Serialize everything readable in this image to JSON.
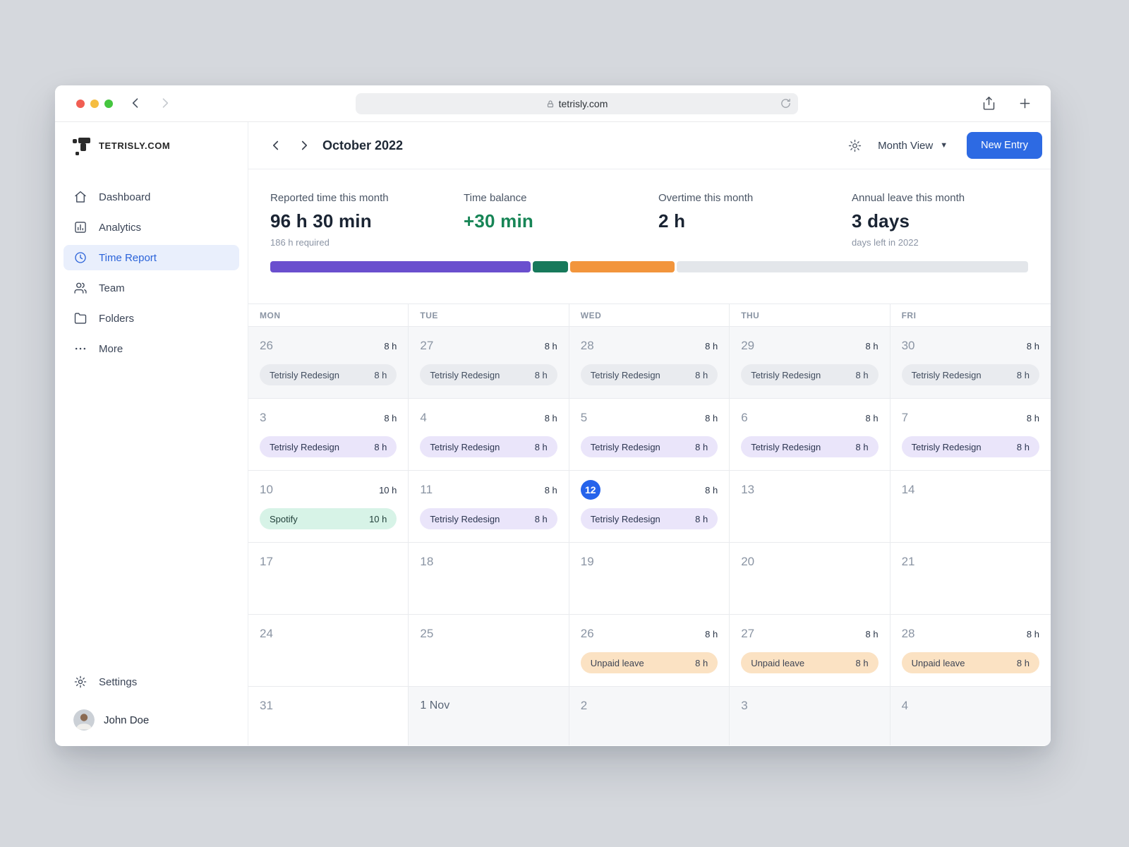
{
  "browser": {
    "url": "tetrisly.com"
  },
  "sidebar": {
    "logo_text": "TETRISLY.COM",
    "items": [
      {
        "label": "Dashboard",
        "icon": "home-icon",
        "active": false
      },
      {
        "label": "Analytics",
        "icon": "analytics-icon",
        "active": false
      },
      {
        "label": "Time Report",
        "icon": "clock-icon",
        "active": true
      },
      {
        "label": "Team",
        "icon": "team-icon",
        "active": false
      },
      {
        "label": "Folders",
        "icon": "folder-icon",
        "active": false
      },
      {
        "label": "More",
        "icon": "more-icon",
        "active": false
      }
    ],
    "settings_label": "Settings",
    "user_name": "John Doe"
  },
  "header": {
    "title": "October 2022",
    "view_label": "Month View",
    "new_entry_label": "New Entry"
  },
  "stats": [
    {
      "label": "Reported time this month",
      "value": "96 h 30 min",
      "sub": "186 h required"
    },
    {
      "label": "Time balance",
      "value": "+30 min",
      "sub": "",
      "color": "#178556"
    },
    {
      "label": "Overtime this month",
      "value": "2 h",
      "sub": ""
    },
    {
      "label": "Annual leave this month",
      "value": "3 days",
      "sub": "days left in 2022"
    }
  ],
  "progress": {
    "segments": [
      {
        "name": "reported",
        "color": "#6A4FCE",
        "pct": 34.4
      },
      {
        "name": "overtime",
        "color": "#17795B",
        "pct": 4.6
      },
      {
        "name": "leave",
        "color": "#F2953C",
        "pct": 13.8
      }
    ],
    "track_color": "#E3E6EA"
  },
  "calendar": {
    "weekdays": [
      "MON",
      "TUE",
      "WED",
      "THU",
      "FRI"
    ],
    "weeks": [
      [
        {
          "day": "26",
          "outside": true,
          "hours": "8 h",
          "entry": {
            "label": "Tetrisly Redesign",
            "hours": "8 h",
            "type": "muted"
          }
        },
        {
          "day": "27",
          "outside": true,
          "hours": "8 h",
          "entry": {
            "label": "Tetrisly Redesign",
            "hours": "8 h",
            "type": "muted"
          }
        },
        {
          "day": "28",
          "outside": true,
          "hours": "8 h",
          "entry": {
            "label": "Tetrisly Redesign",
            "hours": "8 h",
            "type": "muted"
          }
        },
        {
          "day": "29",
          "outside": true,
          "hours": "8 h",
          "entry": {
            "label": "Tetrisly Redesign",
            "hours": "8 h",
            "type": "muted"
          }
        },
        {
          "day": "30",
          "outside": true,
          "hours": "8 h",
          "entry": {
            "label": "Tetrisly Redesign",
            "hours": "8 h",
            "type": "muted"
          }
        }
      ],
      [
        {
          "day": "3",
          "hours": "8 h",
          "entry": {
            "label": "Tetrisly Redesign",
            "hours": "8 h",
            "type": "project"
          }
        },
        {
          "day": "4",
          "hours": "8 h",
          "entry": {
            "label": "Tetrisly Redesign",
            "hours": "8 h",
            "type": "project"
          }
        },
        {
          "day": "5",
          "hours": "8 h",
          "entry": {
            "label": "Tetrisly Redesign",
            "hours": "8 h",
            "type": "project"
          }
        },
        {
          "day": "6",
          "hours": "8 h",
          "entry": {
            "label": "Tetrisly Redesign",
            "hours": "8 h",
            "type": "project"
          }
        },
        {
          "day": "7",
          "hours": "8 h",
          "entry": {
            "label": "Tetrisly Redesign",
            "hours": "8 h",
            "type": "project"
          }
        }
      ],
      [
        {
          "day": "10",
          "hours": "10 h",
          "entry": {
            "label": "Spotify",
            "hours": "10 h",
            "type": "spotify"
          }
        },
        {
          "day": "11",
          "hours": "8 h",
          "entry": {
            "label": "Tetrisly Redesign",
            "hours": "8 h",
            "type": "project"
          }
        },
        {
          "day": "12",
          "today": true,
          "hours": "8 h",
          "entry": {
            "label": "Tetrisly Redesign",
            "hours": "8 h",
            "type": "project"
          }
        },
        {
          "day": "13"
        },
        {
          "day": "14"
        }
      ],
      [
        {
          "day": "17"
        },
        {
          "day": "18"
        },
        {
          "day": "19"
        },
        {
          "day": "20"
        },
        {
          "day": "21"
        }
      ],
      [
        {
          "day": "24"
        },
        {
          "day": "25"
        },
        {
          "day": "26",
          "hours": "8 h",
          "entry": {
            "label": "Unpaid leave",
            "hours": "8 h",
            "type": "unpaid"
          }
        },
        {
          "day": "27",
          "hours": "8 h",
          "entry": {
            "label": "Unpaid leave",
            "hours": "8 h",
            "type": "unpaid"
          }
        },
        {
          "day": "28",
          "hours": "8 h",
          "entry": {
            "label": "Unpaid leave",
            "hours": "8 h",
            "type": "unpaid"
          }
        }
      ],
      [
        {
          "day": "31"
        },
        {
          "day": "1 Nov",
          "outside": true,
          "nov": true
        },
        {
          "day": "2",
          "outside": true
        },
        {
          "day": "3",
          "outside": true
        },
        {
          "day": "4",
          "outside": true
        }
      ]
    ]
  },
  "colors": {
    "accent_blue": "#2D6AE3",
    "today_badge": "#2563EB",
    "balance_green": "#178556",
    "chips": {
      "muted": {
        "bg": "#E9EBEF",
        "text": "#404C5E"
      },
      "project": {
        "bg": "#EAE5FA",
        "text": "#2B3550"
      },
      "spotify": {
        "bg": "#D7F3E7",
        "text": "#21403A"
      },
      "unpaid": {
        "bg": "#FBE2C3",
        "text": "#3D4454"
      }
    }
  }
}
